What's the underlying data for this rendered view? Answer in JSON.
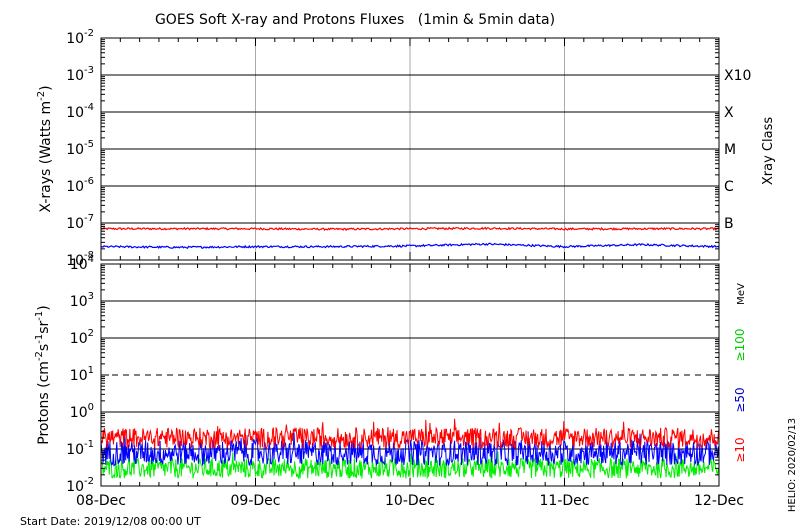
{
  "chart_data": {
    "type": "line",
    "title": "GOES Soft X-ray and Protons Fluxes   (1min & 5min data)",
    "start_label": "Start Date: 2019/12/08 00:00 UT",
    "footer_right": "HELIO: 2020/02/13",
    "x_ticks": [
      "08-Dec",
      "09-Dec",
      "10-Dec",
      "11-Dec",
      "12-Dec"
    ],
    "x_range_days": [
      0,
      4
    ],
    "xray": {
      "ylabel_prefix": "X-rays (Watts m",
      "ylabel_sup": "-2",
      "ylabel_suffix": ")",
      "ylim_exp": [
        -8,
        -2
      ],
      "y_tick_exponents": [
        -8,
        -7,
        -6,
        -5,
        -4,
        -3,
        -2
      ],
      "class_title": "Xray Class",
      "class_labels": [
        {
          "label": "X10",
          "exp": -3
        },
        {
          "label": "X",
          "exp": -4
        },
        {
          "label": "M",
          "exp": -5
        },
        {
          "label": "C",
          "exp": -6
        },
        {
          "label": "B",
          "exp": -7
        }
      ],
      "series": [
        {
          "color": "#ff0000",
          "approx_value": 7e-08,
          "x": [
            0,
            0.5,
            1,
            1.5,
            2,
            2.5,
            3,
            3.5,
            4
          ],
          "y": [
            7e-08,
            7e-08,
            7e-08,
            6.8e-08,
            7e-08,
            7.2e-08,
            6.9e-08,
            7e-08,
            7e-08
          ]
        },
        {
          "color": "#0000ff",
          "approx_value": 2.3e-08,
          "x": [
            0,
            0.5,
            1,
            1.5,
            2,
            2.5,
            3,
            3.5,
            4
          ],
          "y": [
            2.3e-08,
            2.2e-08,
            2.3e-08,
            2.3e-08,
            2.4e-08,
            2.7e-08,
            2.3e-08,
            2.6e-08,
            2.3e-08
          ]
        }
      ]
    },
    "protons": {
      "ylabel_prefix": "Protons (cm",
      "ylabel_sup1": "-2",
      "ylabel_mid": "s",
      "ylabel_sup2": "-1",
      "ylabel_mid2": "sr",
      "ylabel_sup3": "-1",
      "ylabel_suffix": ")",
      "ylim_exp": [
        -2,
        4
      ],
      "y_tick_exponents": [
        -2,
        -1,
        0,
        1,
        2,
        3,
        4
      ],
      "threshold_exp": 1,
      "energy_unit": "MeV",
      "energy_labels": [
        {
          "label": "≥100",
          "color": "#00cc00"
        },
        {
          "label": "≥50",
          "color": "#0000cc"
        },
        {
          "label": "≥10",
          "color": "#ff0000"
        }
      ],
      "series": [
        {
          "name": "≥10",
          "color": "#ff0000",
          "approx_value": 0.2
        },
        {
          "name": "≥50",
          "color": "#0000ff",
          "approx_value": 0.08
        },
        {
          "name": "≥100",
          "color": "#00ee00",
          "approx_value": 0.03
        }
      ]
    }
  }
}
